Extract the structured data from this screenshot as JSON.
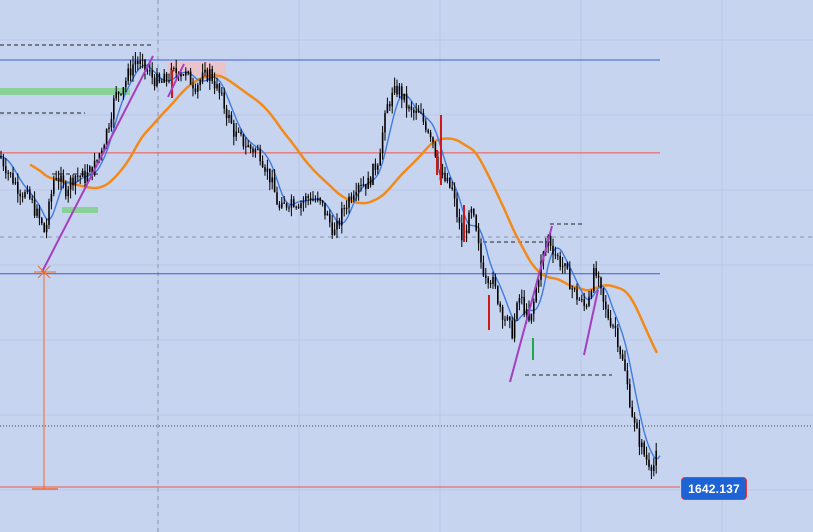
{
  "chart_data": {
    "type": "candlestick",
    "title": "",
    "xlabel": "",
    "ylabel": "",
    "ylim": [
      1640,
      1790
    ],
    "current_price_label": "1642.137",
    "colors": {
      "background": "#c7d4f0",
      "candles": "#000000",
      "fast_ma": "#3f7be0",
      "slow_ma": "#f28a1a",
      "horizontal_blue": "#3a5fd9",
      "horizontal_red": "#f0554a",
      "trendline": "#a43fc0",
      "zone_green": "#7ecf8a",
      "zone_pink": "#efc1c4",
      "price_tag_bg": "#1e63d6",
      "price_tag_border": "#e23a3a"
    },
    "horizontal_levels": [
      {
        "price": 1780,
        "style": "solid",
        "color": "blue"
      },
      {
        "price": 1750,
        "style": "solid",
        "color": "red"
      },
      {
        "price": 1711,
        "style": "solid",
        "color": "blue"
      },
      {
        "price": 1642.137,
        "style": "solid",
        "color": "red"
      }
    ],
    "grid": true,
    "price_path": [
      [
        0,
        1749
      ],
      [
        10,
        1743
      ],
      [
        20,
        1738
      ],
      [
        30,
        1735
      ],
      [
        40,
        1728
      ],
      [
        45,
        1724
      ],
      [
        55,
        1744
      ],
      [
        65,
        1738
      ],
      [
        75,
        1743
      ],
      [
        85,
        1742
      ],
      [
        95,
        1746
      ],
      [
        105,
        1755
      ],
      [
        115,
        1768
      ],
      [
        125,
        1773
      ],
      [
        135,
        1780
      ],
      [
        148,
        1776
      ],
      [
        160,
        1772
      ],
      [
        170,
        1775
      ],
      [
        180,
        1777
      ],
      [
        195,
        1772
      ],
      [
        210,
        1776
      ],
      [
        222,
        1767
      ],
      [
        235,
        1756
      ],
      [
        248,
        1752
      ],
      [
        260,
        1750
      ],
      [
        270,
        1742
      ],
      [
        280,
        1731
      ],
      [
        290,
        1735
      ],
      [
        300,
        1734
      ],
      [
        310,
        1736
      ],
      [
        322,
        1733
      ],
      [
        335,
        1724
      ],
      [
        345,
        1733
      ],
      [
        358,
        1741
      ],
      [
        368,
        1740
      ],
      [
        378,
        1748
      ],
      [
        388,
        1766
      ],
      [
        398,
        1771
      ],
      [
        410,
        1763
      ],
      [
        420,
        1762
      ],
      [
        432,
        1756
      ],
      [
        440,
        1743
      ],
      [
        452,
        1738
      ],
      [
        462,
        1722
      ],
      [
        472,
        1731
      ],
      [
        482,
        1713
      ],
      [
        492,
        1709
      ],
      [
        502,
        1699
      ],
      [
        512,
        1692
      ],
      [
        520,
        1704
      ],
      [
        530,
        1694
      ],
      [
        538,
        1710
      ],
      [
        548,
        1723
      ],
      [
        556,
        1717
      ],
      [
        564,
        1713
      ],
      [
        574,
        1705
      ],
      [
        585,
        1700
      ],
      [
        595,
        1712
      ],
      [
        605,
        1699
      ],
      [
        615,
        1694
      ],
      [
        625,
        1679
      ],
      [
        635,
        1661
      ],
      [
        645,
        1652
      ],
      [
        650,
        1650
      ],
      [
        655,
        1649
      ],
      [
        660,
        1660
      ]
    ]
  }
}
